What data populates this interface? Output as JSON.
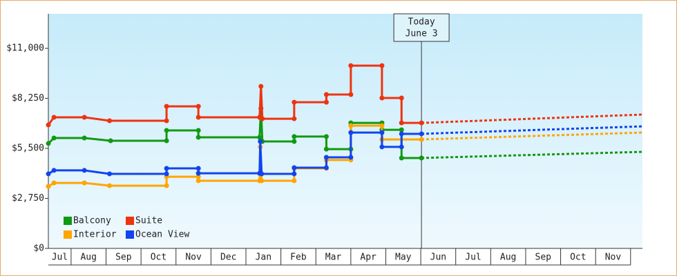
{
  "chart_data": {
    "type": "line",
    "xlim": [
      0.35,
      17.34
    ],
    "ylim": [
      0,
      12900
    ],
    "yticks": [
      {
        "value": 0,
        "label": "$0"
      },
      {
        "value": 2750,
        "label": "$2,750"
      },
      {
        "value": 5500,
        "label": "$5,500"
      },
      {
        "value": 8250,
        "label": "$8,250"
      },
      {
        "value": 11000,
        "label": "$11,000"
      }
    ],
    "xticks": [
      {
        "value": 0,
        "label": "Jul"
      },
      {
        "value": 1,
        "label": "Aug"
      },
      {
        "value": 2,
        "label": "Sep"
      },
      {
        "value": 3,
        "label": "Oct"
      },
      {
        "value": 4,
        "label": "Nov"
      },
      {
        "value": 5,
        "label": "Dec"
      },
      {
        "value": 6,
        "label": "Jan"
      },
      {
        "value": 7,
        "label": "Feb"
      },
      {
        "value": 8,
        "label": "Mar"
      },
      {
        "value": 9,
        "label": "Apr"
      },
      {
        "value": 10,
        "label": "May"
      },
      {
        "value": 11,
        "label": "Jun"
      },
      {
        "value": 12,
        "label": "Jul"
      },
      {
        "value": 13,
        "label": "Aug"
      },
      {
        "value": 14,
        "label": "Sep"
      },
      {
        "value": 15,
        "label": "Oct"
      },
      {
        "value": 16,
        "label": "Nov"
      }
    ],
    "today": {
      "x": 11.02,
      "label": [
        "Today",
        "June 3"
      ]
    },
    "legend": "lower left",
    "series": [
      {
        "name": "Balcony",
        "color": "#119911",
        "x": [
          0.35,
          0.51,
          1.38,
          2.13,
          3.73,
          3.73,
          4.64,
          4.64,
          6.39,
          6.43,
          6.47,
          7.38,
          7.38,
          8.3,
          8.3,
          9.0,
          9.0,
          9.89,
          9.89,
          10.45,
          10.45,
          11.02
        ],
        "values": [
          5770,
          6070,
          6070,
          5920,
          5920,
          6490,
          6490,
          6110,
          6110,
          7700,
          5880,
          5880,
          6150,
          6150,
          5460,
          5460,
          6900,
          6900,
          6520,
          6520,
          4970,
          4970
        ],
        "forecast": {
          "x": [
            11.02,
            17.34
          ],
          "values": [
            4970,
            5310
          ]
        }
      },
      {
        "name": "Suite",
        "color": "#ee3311",
        "x": [
          0.35,
          0.51,
          1.38,
          2.1,
          3.73,
          3.73,
          4.64,
          4.64,
          6.39,
          6.43,
          6.47,
          7.38,
          7.38,
          8.3,
          8.3,
          9.0,
          9.0,
          9.89,
          9.89,
          10.45,
          10.45,
          11.02
        ],
        "values": [
          6790,
          7210,
          7210,
          7020,
          7020,
          7810,
          7810,
          7210,
          7210,
          8910,
          7130,
          7130,
          8040,
          8040,
          8460,
          8460,
          10050,
          10050,
          8270,
          8270,
          6900,
          6900
        ],
        "forecast": {
          "x": [
            11.02,
            17.34
          ],
          "values": [
            6900,
            7360
          ]
        }
      },
      {
        "name": "Interior",
        "color": "#ffa500",
        "x": [
          0.35,
          0.51,
          1.38,
          2.1,
          3.73,
          3.73,
          4.64,
          4.64,
          6.39,
          6.41,
          6.45,
          7.38,
          7.38,
          8.3,
          8.3,
          9.0,
          9.0,
          9.89,
          9.89,
          11.02
        ],
        "values": [
          3410,
          3600,
          3600,
          3450,
          3450,
          3940,
          3940,
          3720,
          3720,
          5580,
          3720,
          3720,
          4400,
          4400,
          4860,
          4860,
          6750,
          6750,
          5990,
          5990
        ],
        "forecast": {
          "x": [
            11.02,
            17.34
          ],
          "values": [
            5990,
            6370
          ]
        }
      },
      {
        "name": "Ocean View",
        "color": "#1144ee",
        "x": [
          0.35,
          0.51,
          1.38,
          2.1,
          3.73,
          3.73,
          4.64,
          4.64,
          6.39,
          6.41,
          6.45,
          7.38,
          7.38,
          8.3,
          8.3,
          9.0,
          9.0,
          9.89,
          9.89,
          10.45,
          10.45,
          11.02
        ],
        "values": [
          4100,
          4290,
          4290,
          4100,
          4100,
          4400,
          4400,
          4130,
          4130,
          5880,
          4100,
          4100,
          4440,
          4440,
          5010,
          5010,
          6370,
          6370,
          5580,
          5580,
          6300,
          6300
        ],
        "forecast": {
          "x": [
            11.02,
            17.34
          ],
          "values": [
            6300,
            6710
          ]
        }
      }
    ]
  }
}
